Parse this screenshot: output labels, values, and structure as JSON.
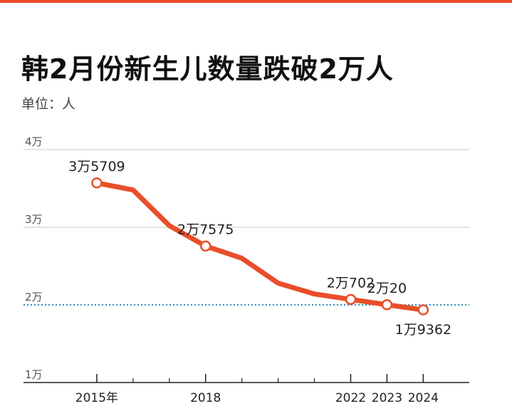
{
  "title": "韩2月份新生儿数量跌破2万人",
  "unit_label": "单位：人",
  "colors": {
    "line": "#e94e2a",
    "accent": "#e94e2a",
    "reference": "#2a8fb8",
    "grid": "#c9c9c9"
  },
  "chart_data": {
    "type": "line",
    "title": "韩2月份新生儿数量跌破2万人",
    "xlabel": "",
    "ylabel": "单位：人",
    "xlim": [
      2014.0,
      2024.7
    ],
    "ylim": [
      10000,
      40000
    ],
    "y_ticks": [
      {
        "value": 10000,
        "label": "1万"
      },
      {
        "value": 20000,
        "label": "2万"
      },
      {
        "value": 30000,
        "label": "3万"
      },
      {
        "value": 40000,
        "label": "4万"
      }
    ],
    "x_ticks": [
      {
        "value": 2015,
        "label": "2015年"
      },
      {
        "value": 2018,
        "label": "2018"
      },
      {
        "value": 2022,
        "label": "2022"
      },
      {
        "value": 2023,
        "label": "2023"
      },
      {
        "value": 2024,
        "label": "2024"
      }
    ],
    "minor_x_ticks": [
      2016,
      2017,
      2019,
      2020,
      2021
    ],
    "reference_line": 20000,
    "grid": true,
    "series": [
      {
        "values": [
          {
            "x": 2015,
            "y": 35709
          },
          {
            "x": 2016,
            "y": 34800
          },
          {
            "x": 2017,
            "y": 30200
          },
          {
            "x": 2018,
            "y": 27575
          },
          {
            "x": 2019,
            "y": 26000
          },
          {
            "x": 2020,
            "y": 22800
          },
          {
            "x": 2021,
            "y": 21400
          },
          {
            "x": 2022,
            "y": 20702
          },
          {
            "x": 2023,
            "y": 20020
          },
          {
            "x": 2024,
            "y": 19362
          }
        ]
      }
    ],
    "labeled_points": [
      {
        "x": 2015,
        "y": 35709,
        "label": "3万5709",
        "pos": "above"
      },
      {
        "x": 2018,
        "y": 27575,
        "label": "2万7575",
        "pos": "above"
      },
      {
        "x": 2022,
        "y": 20702,
        "label": "2万702",
        "pos": "above"
      },
      {
        "x": 2023,
        "y": 20020,
        "label": "2万20",
        "pos": "above"
      },
      {
        "x": 2024,
        "y": 19362,
        "label": "1万9362",
        "pos": "below"
      }
    ]
  }
}
